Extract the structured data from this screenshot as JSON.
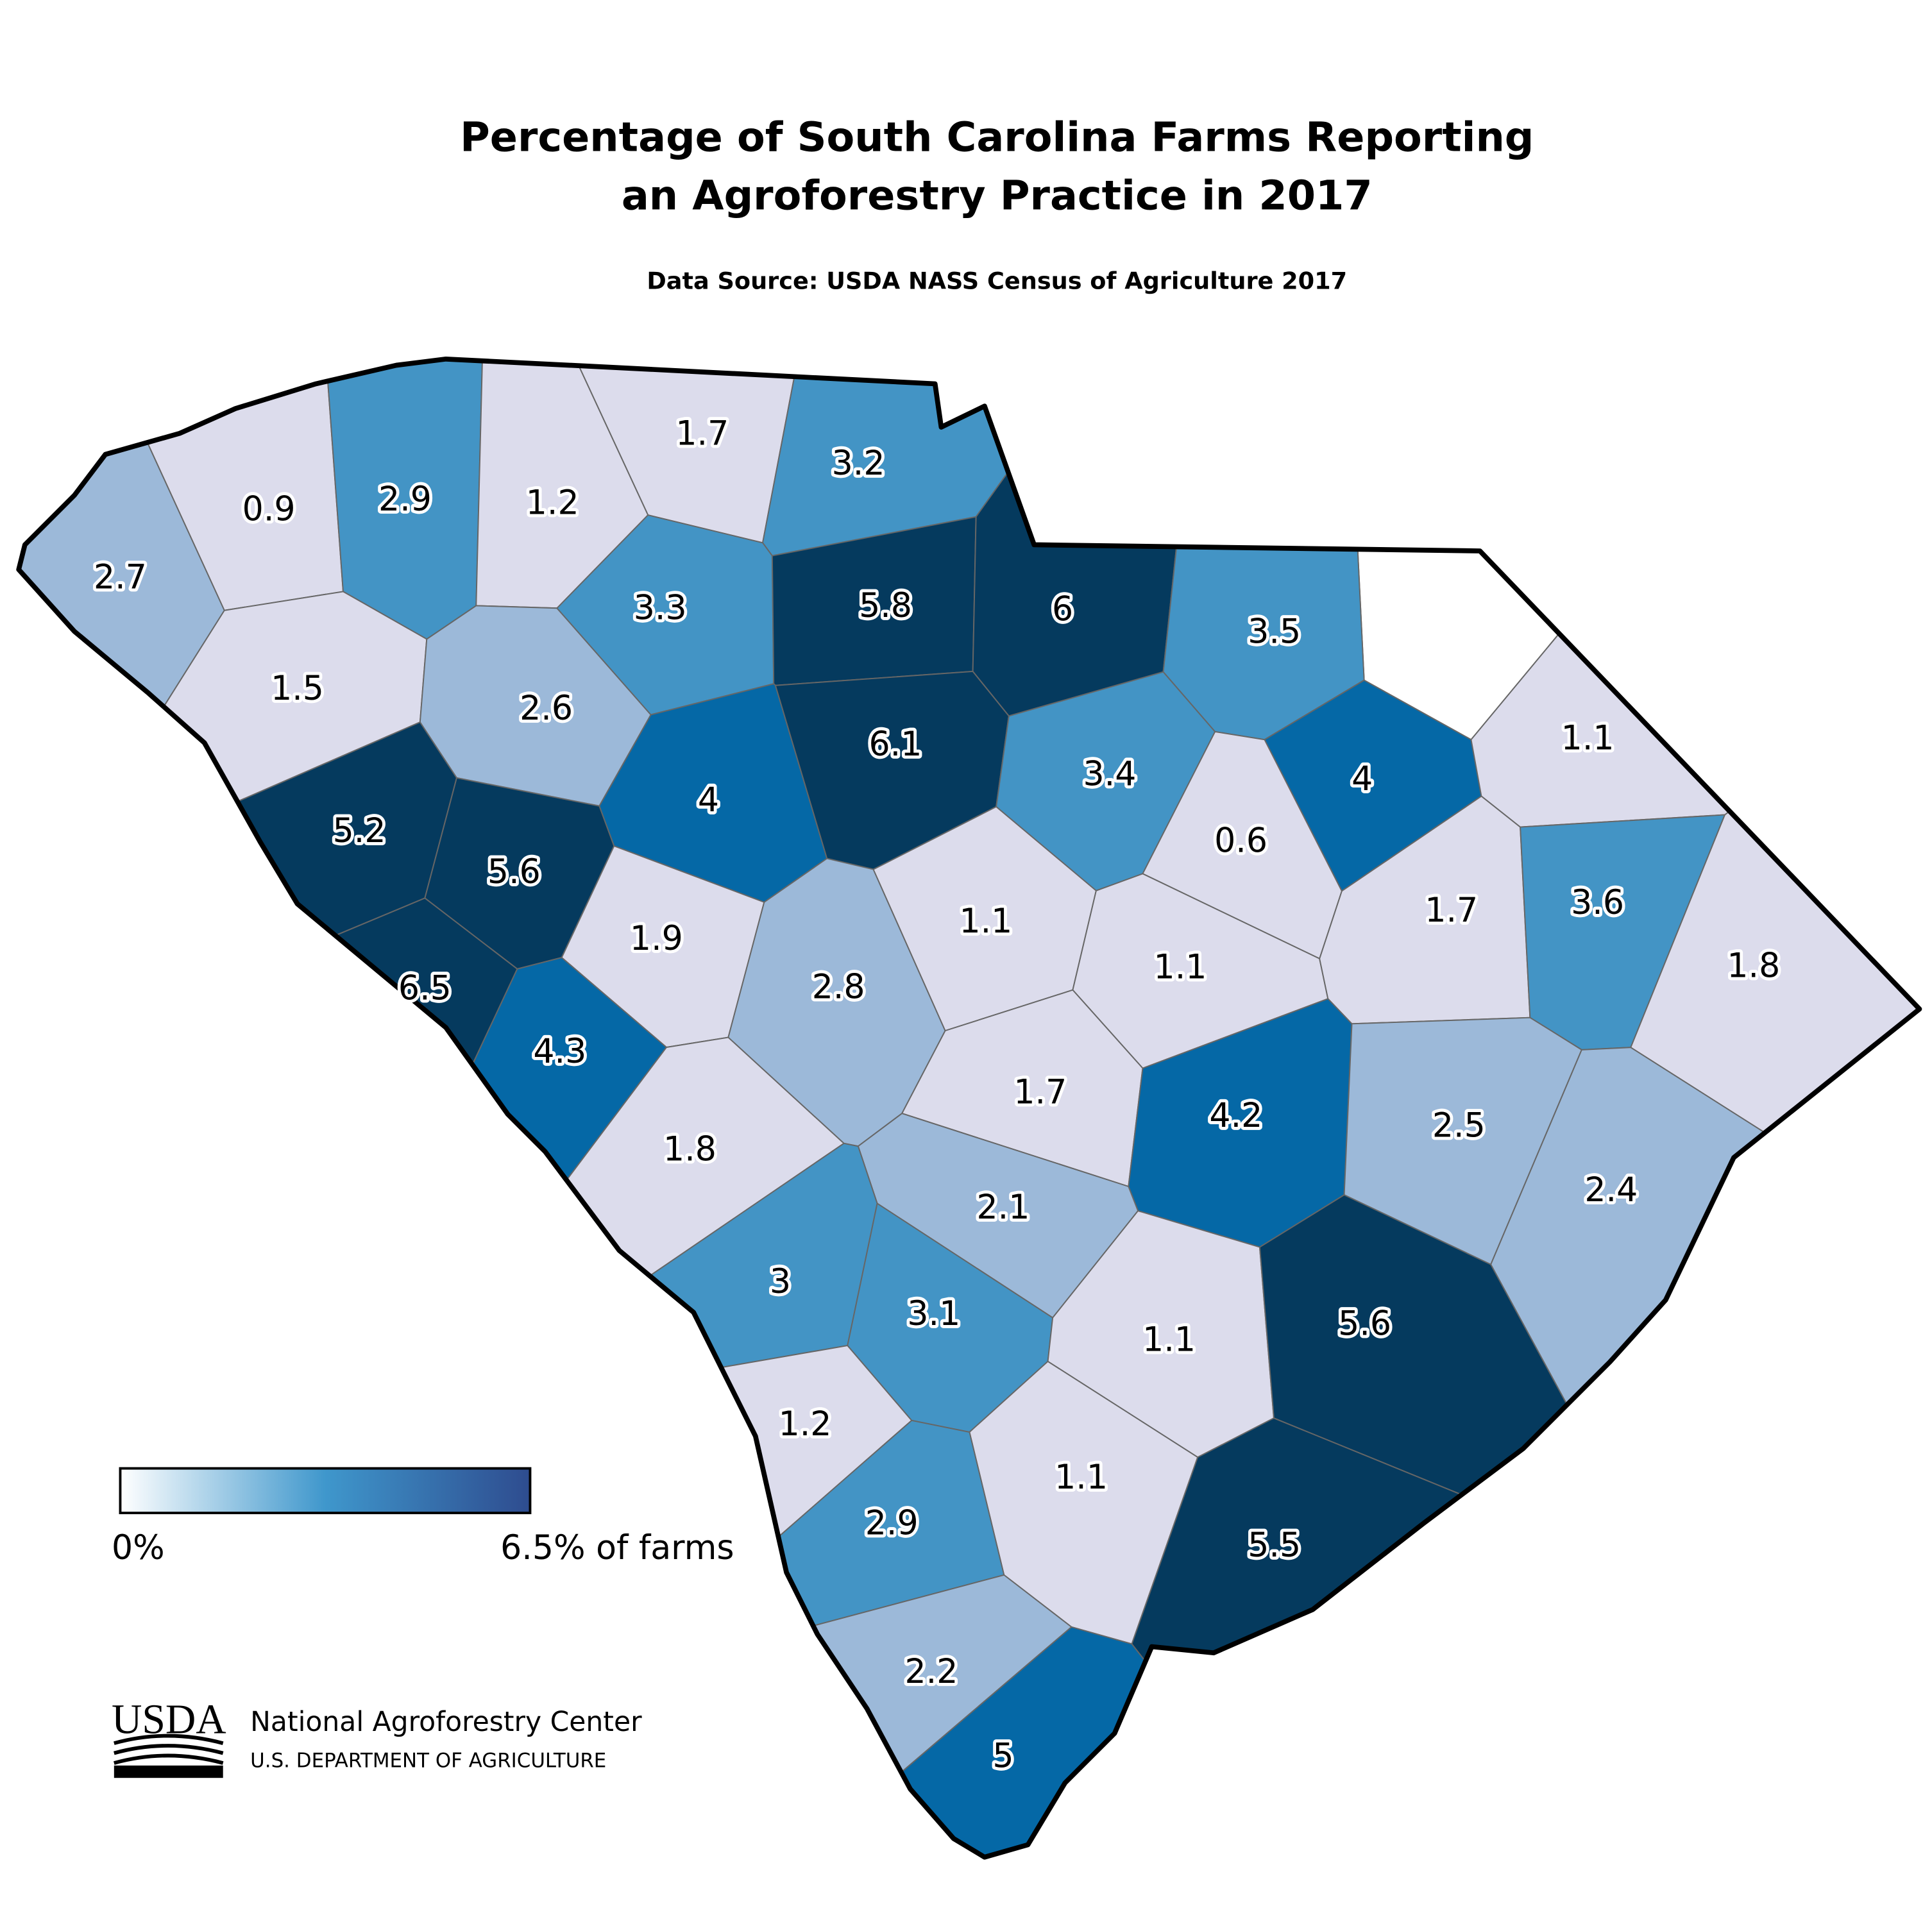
{
  "header": {
    "title_lines": [
      "Percentage of South Carolina Farms Reporting",
      "an Agroforestry Practice in 2017"
    ],
    "subtitle": "Data Source: USDA NASS Census of Agriculture 2017"
  },
  "map": {
    "type": "choropleth",
    "regions": [
      {
        "value": 2.7,
        "color": "#9cb9d9"
      },
      {
        "value": 0.9,
        "color": "#dcdcec"
      },
      {
        "value": 2.9,
        "color": "#4394c5"
      },
      {
        "value": 1.2,
        "color": "#dcdcec"
      },
      {
        "value": 1.7,
        "color": "#dcdcec"
      },
      {
        "value": 3.2,
        "color": "#4394c5"
      },
      {
        "value": 1.5,
        "color": "#dcdcec"
      },
      {
        "value": 2.6,
        "color": "#9cb9d9"
      },
      {
        "value": 3.3,
        "color": "#4394c5"
      },
      {
        "value": 5.8,
        "color": "#053a5e"
      },
      {
        "value": 6,
        "color": "#053a5e"
      },
      {
        "value": 3.5,
        "color": "#4394c5"
      },
      {
        "value": 5.2,
        "color": "#053a5e"
      },
      {
        "value": 5.6,
        "color": "#053a5e"
      },
      {
        "value": 4,
        "color": "#0568a6"
      },
      {
        "value": 6.1,
        "color": "#053a5e"
      },
      {
        "value": 3.4,
        "color": "#4394c5"
      },
      {
        "value": 4,
        "color": "#0568a6"
      },
      {
        "value": 0.6,
        "color": "#dcdcec"
      },
      {
        "value": 1.1,
        "color": "#dcdcec"
      },
      {
        "value": 6.5,
        "color": "#053a5e"
      },
      {
        "value": 1.9,
        "color": "#dcdcec"
      },
      {
        "value": 4.3,
        "color": "#0568a6"
      },
      {
        "value": 2.8,
        "color": "#9cb9d9"
      },
      {
        "value": 1.1,
        "color": "#dcdcec"
      },
      {
        "value": 1.1,
        "color": "#dcdcec"
      },
      {
        "value": 1.7,
        "color": "#dcdcec"
      },
      {
        "value": 3.6,
        "color": "#4394c5"
      },
      {
        "value": 1.8,
        "color": "#dcdcec"
      },
      {
        "value": 1.8,
        "color": "#dcdcec"
      },
      {
        "value": 1.7,
        "color": "#dcdcec"
      },
      {
        "value": 4.2,
        "color": "#0568a6"
      },
      {
        "value": 2.5,
        "color": "#9cb9d9"
      },
      {
        "value": 2.4,
        "color": "#9cb9d9"
      },
      {
        "value": 2.1,
        "color": "#9cb9d9"
      },
      {
        "value": 3,
        "color": "#4394c5"
      },
      {
        "value": 3.1,
        "color": "#4394c5"
      },
      {
        "value": 1.1,
        "color": "#dcdcec"
      },
      {
        "value": 5.6,
        "color": "#053a5e"
      },
      {
        "value": 1.2,
        "color": "#dcdcec"
      },
      {
        "value": 1.1,
        "color": "#dcdcec"
      },
      {
        "value": 2.9,
        "color": "#4394c5"
      },
      {
        "value": 5.5,
        "color": "#053a5e"
      },
      {
        "value": 2.2,
        "color": "#9cb9d9"
      },
      {
        "value": 5,
        "color": "#0568a6"
      }
    ]
  },
  "legend": {
    "colors": [
      "#ffffff",
      "#3f97cc",
      "#2e4c8f"
    ],
    "min_label": "0%",
    "max_label": "6.5% of farms"
  },
  "footer": {
    "logo": "USDA",
    "org": "National Agroforestry Center",
    "dept": "U.S. DEPARTMENT OF AGRICULTURE"
  }
}
